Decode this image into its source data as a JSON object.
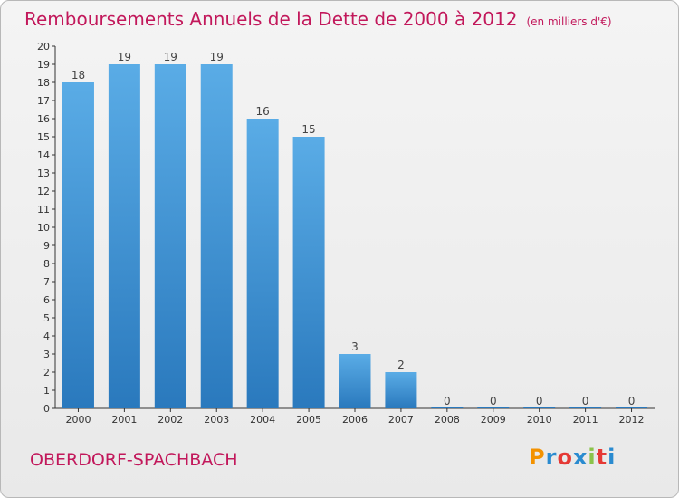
{
  "page": {
    "title": "Remboursements Annuels de la Dette de 2000 à 2012",
    "unit": "(en milliers d'€)",
    "commune": "OBERDORF-SPACHBACH",
    "logo": "Proxiti",
    "logo_colors": [
      "#f39200",
      "#2a8bd0",
      "#e53935",
      "#2a8bd0",
      "#8bc34a",
      "#e53935",
      "#2a8bd0"
    ]
  },
  "colors": {
    "title": "#c2185b",
    "bar_light": "#5aace6",
    "bar_dark": "#2a79bd",
    "axis": "#333333",
    "grid": "#cccccc"
  },
  "chart_data": {
    "type": "bar",
    "title": "Remboursements Annuels de la Dette de 2000 à 2012",
    "subtitle": "(en milliers d'€)",
    "categories": [
      "2000",
      "2001",
      "2002",
      "2003",
      "2004",
      "2005",
      "2006",
      "2007",
      "2008",
      "2009",
      "2010",
      "2011",
      "2012"
    ],
    "values": [
      18,
      19,
      19,
      19,
      16,
      15,
      3,
      2,
      0,
      0,
      0,
      0,
      0
    ],
    "data_labels": [
      "18",
      "19",
      "19",
      "19",
      "16",
      "15",
      "3",
      "2",
      "0",
      "0",
      "0",
      "0",
      "0"
    ],
    "ylim": [
      0,
      20
    ],
    "yticks": [
      0,
      1,
      2,
      3,
      4,
      5,
      6,
      7,
      8,
      9,
      10,
      11,
      12,
      13,
      14,
      15,
      16,
      17,
      18,
      19,
      20
    ],
    "xlabel": "",
    "ylabel": "",
    "grid": false,
    "legend": "none"
  }
}
